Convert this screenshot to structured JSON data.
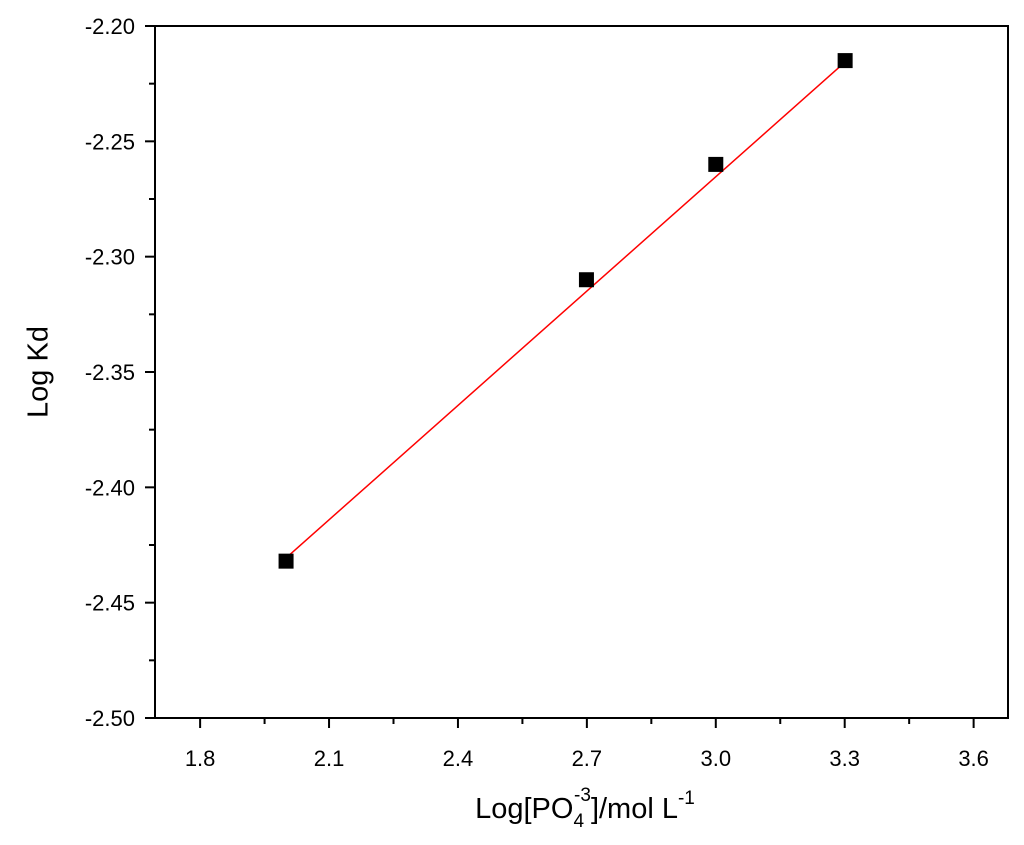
{
  "chart_data": {
    "type": "scatter",
    "xlabel": {
      "parts": [
        "Log[PO",
        "4",
        "-3",
        "]/mol L",
        "-1"
      ]
    },
    "ylabel": "Log Kd",
    "series": [
      {
        "color": "#000000",
        "x": [
          2.0,
          2.699,
          3.0,
          3.301
        ],
        "values": [
          -2.432,
          -2.31,
          -2.26,
          -2.215
        ]
      }
    ],
    "fit": {
      "color": "#ff0000",
      "x": [
        2.0,
        3.301
      ],
      "values": [
        -2.4306,
        -2.2156
      ]
    },
    "xlim": [
      1.695,
      3.68
    ],
    "ylim": [
      -2.5,
      -2.2
    ],
    "xticks": [
      1.8,
      2.1,
      2.4,
      2.7,
      {
        "value": 3,
        "label": "3.0"
      },
      3.3,
      3.6
    ],
    "xminor": [
      1.95,
      2.25,
      2.55,
      2.85,
      3.15,
      3.45
    ],
    "yticks": [
      {
        "value": -2.5,
        "label": "-2.50"
      },
      -2.45,
      {
        "value": -2.4,
        "label": "-2.40"
      },
      -2.35,
      {
        "value": -2.3,
        "label": "-2.30"
      },
      -2.25,
      {
        "value": -2.2,
        "label": "-2.20"
      }
    ],
    "yminor": [
      -2.475,
      -2.425,
      -2.375,
      -2.325,
      -2.275,
      -2.225
    ]
  }
}
